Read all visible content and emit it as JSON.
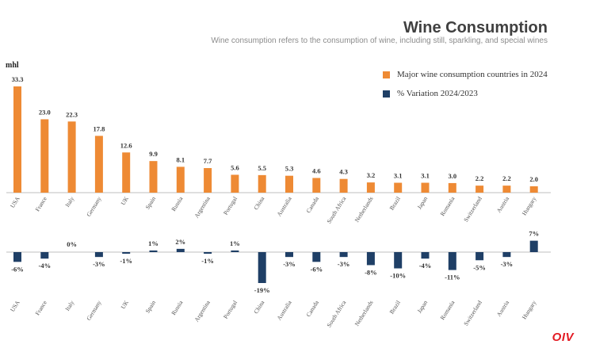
{
  "title": "Wine Consumption",
  "subtitle": "Wine consumption refers to the consumption of wine, including still, sparkling, and special wines",
  "unit_label": "mhl",
  "legend": {
    "consumption": "Major wine consumption countries in 2024",
    "variation": "% Variation 2024/2023"
  },
  "colors": {
    "consumption": "#ee8a34",
    "variation": "#1f3f66",
    "logo": "#e31b23"
  },
  "logo_text": "OIV",
  "chart_data": [
    {
      "type": "bar",
      "title": "Major wine consumption countries in 2024",
      "ylabel": "mhl",
      "categories": [
        "USA",
        "France",
        "Italy",
        "Germany",
        "UK",
        "Spain",
        "Russia",
        "Argentina",
        "Portugal",
        "China",
        "Australia",
        "Canada",
        "South Africa",
        "Netherlands",
        "Brazil",
        "Japan",
        "Romania",
        "Switzerland",
        "Austria",
        "Hungary"
      ],
      "values": [
        33.3,
        23.0,
        22.3,
        17.8,
        12.6,
        9.9,
        8.1,
        7.7,
        5.6,
        5.5,
        5.3,
        4.6,
        4.3,
        3.2,
        3.1,
        3.1,
        3.0,
        2.2,
        2.2,
        2.0
      ],
      "labels": [
        "33.3",
        "23.0",
        "22.3",
        "17.8",
        "12.6",
        "9.9",
        "8.1",
        "7.7",
        "5.6",
        "5.5",
        "5.3",
        "4.6",
        "4.3",
        "3.2",
        "3.1",
        "3.1",
        "3.0",
        "2.2",
        "2.2",
        "2.0"
      ],
      "ylim": [
        0,
        33.3
      ]
    },
    {
      "type": "bar",
      "title": "% Variation 2024/2023",
      "categories": [
        "USA",
        "France",
        "Italy",
        "Germany",
        "UK",
        "Spain",
        "Russia",
        "Argentina",
        "Portugal",
        "China",
        "Australia",
        "Canada",
        "South Africa",
        "Netherlands",
        "Brazil",
        "Japan",
        "Romania",
        "Switzerland",
        "Austria",
        "Hungary"
      ],
      "values": [
        -6,
        -4,
        0,
        -3,
        -1,
        1,
        2,
        -1,
        1,
        -19,
        -3,
        -6,
        -3,
        -8,
        -10,
        -4,
        -11,
        -5,
        -3,
        7
      ],
      "labels": [
        "-6%",
        "-4%",
        "0%",
        "-3%",
        "-1%",
        "1%",
        "2%",
        "-1%",
        "1%",
        "-19%",
        "-3%",
        "-6%",
        "-3%",
        "-8%",
        "-10%",
        "-4%",
        "-11%",
        "-5%",
        "-3%",
        "7%"
      ],
      "ylim": [
        -19,
        7
      ]
    }
  ]
}
